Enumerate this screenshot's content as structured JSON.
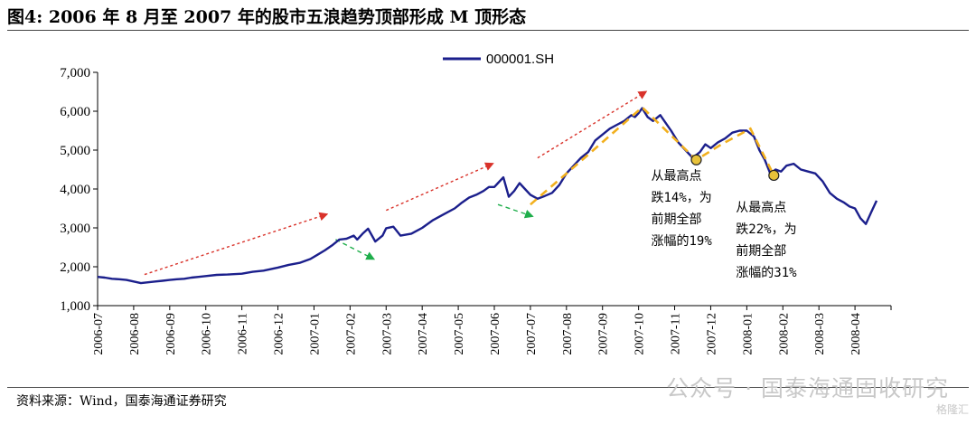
{
  "figure": {
    "title": "图4:  2006 年 8 月至 2007 年的股市五浪趋势顶部形成 M 顶形态",
    "source": "资料来源：Wind，国泰海通证券研究",
    "watermark": "公众号 · 国泰海通固收研究",
    "watermark_logo": "格隆汇"
  },
  "colors": {
    "series": "#1b1f8c",
    "red_arrow": "#d9322a",
    "green_arrow": "#1fae4b",
    "trend_dash": "#f2b01e",
    "marker": "#e8c23a"
  },
  "chart_data": {
    "type": "line",
    "title": "",
    "xlabel": "",
    "ylabel": "",
    "ylim": [
      1000,
      7000
    ],
    "yticks": [
      1000,
      2000,
      3000,
      4000,
      5000,
      6000,
      7000
    ],
    "ytick_labels": [
      "1,000",
      "2,000",
      "3,000",
      "4,000",
      "5,000",
      "6,000",
      "7,000"
    ],
    "xtick_labels": [
      "2006-07",
      "2006-08",
      "2006-09",
      "2006-10",
      "2006-11",
      "2006-12",
      "2007-01",
      "2007-02",
      "2007-03",
      "2007-04",
      "2007-05",
      "2007-06",
      "2007-07",
      "2007-08",
      "2007-09",
      "2007-10",
      "2007-11",
      "2007-12",
      "2008-01",
      "2008-02",
      "2008-03",
      "2008-04"
    ],
    "grid": false,
    "legend_position": "top-center",
    "series": [
      {
        "name": "000001.SH",
        "x": [
          0.0,
          0.2,
          0.4,
          0.6,
          0.8,
          1.0,
          1.2,
          1.4,
          1.6,
          1.8,
          2.0,
          2.2,
          2.4,
          2.6,
          2.8,
          3.0,
          3.3,
          3.6,
          4.0,
          4.3,
          4.6,
          5.0,
          5.3,
          5.6,
          5.9,
          6.1,
          6.3,
          6.5,
          6.7,
          6.9,
          7.1,
          7.2,
          7.35,
          7.5,
          7.7,
          7.9,
          8.0,
          8.2,
          8.4,
          8.7,
          9.0,
          9.3,
          9.6,
          9.9,
          10.1,
          10.3,
          10.5,
          10.7,
          10.85,
          11.0,
          11.1,
          11.25,
          11.4,
          11.55,
          11.7,
          11.85,
          12.0,
          12.2,
          12.4,
          12.6,
          12.8,
          13.0,
          13.2,
          13.4,
          13.6,
          13.8,
          14.0,
          14.2,
          14.4,
          14.6,
          14.8,
          14.9,
          15.0,
          15.1,
          15.25,
          15.4,
          15.6,
          15.75,
          15.9,
          16.1,
          16.3,
          16.5,
          16.7,
          16.85,
          17.0,
          17.2,
          17.4,
          17.6,
          17.8,
          18.0,
          18.2,
          18.35,
          18.5,
          18.65,
          18.8,
          18.95,
          19.1,
          19.3,
          19.5,
          19.7,
          19.9,
          20.1,
          20.3,
          20.5,
          20.7,
          20.85,
          21.0,
          21.15,
          21.3,
          21.45,
          21.6
        ],
        "values": [
          1740,
          1720,
          1690,
          1680,
          1660,
          1620,
          1580,
          1600,
          1620,
          1640,
          1660,
          1680,
          1690,
          1720,
          1740,
          1760,
          1790,
          1800,
          1820,
          1870,
          1900,
          1980,
          2050,
          2100,
          2200,
          2310,
          2420,
          2550,
          2700,
          2720,
          2800,
          2700,
          2850,
          2980,
          2650,
          2800,
          2990,
          3030,
          2800,
          2850,
          3000,
          3200,
          3350,
          3500,
          3650,
          3780,
          3850,
          3950,
          4050,
          4050,
          4150,
          4300,
          3800,
          3950,
          4150,
          4000,
          3850,
          3750,
          3820,
          3900,
          4100,
          4400,
          4600,
          4800,
          4950,
          5250,
          5400,
          5550,
          5650,
          5750,
          5900,
          5850,
          5950,
          6080,
          5850,
          5750,
          5900,
          5700,
          5500,
          5200,
          5000,
          4800,
          4950,
          5150,
          5050,
          5200,
          5300,
          5450,
          5500,
          5500,
          5350,
          5000,
          4750,
          4400,
          4500,
          4450,
          4600,
          4650,
          4500,
          4450,
          4400,
          4200,
          3900,
          3750,
          3650,
          3550,
          3500,
          3250,
          3100,
          3400,
          3700
        ]
      }
    ],
    "annotations": [
      {
        "lines": [
          "从最高点",
          "跌14%，为",
          "前期全部",
          "涨幅的19%"
        ],
        "at_x": 16.6,
        "at_y": 4750
      },
      {
        "lines": [
          "从最高点",
          "跌22%，为",
          "前期全部",
          "涨幅的31%"
        ],
        "at_x": 18.75,
        "at_y": 4350
      }
    ],
    "trend_arrows": [
      {
        "kind": "red",
        "from": [
          1.3,
          1800
        ],
        "to": [
          6.35,
          3350
        ]
      },
      {
        "kind": "green",
        "from": [
          6.6,
          2700
        ],
        "to": [
          7.65,
          2200
        ]
      },
      {
        "kind": "red",
        "from": [
          8.0,
          3450
        ],
        "to": [
          10.95,
          4650
        ]
      },
      {
        "kind": "green",
        "from": [
          11.1,
          3600
        ],
        "to": [
          12.05,
          3300
        ]
      },
      {
        "kind": "red",
        "from": [
          12.2,
          4800
        ],
        "to": [
          15.2,
          6500
        ]
      }
    ],
    "dashed_trend": {
      "x": [
        12.0,
        13.5,
        15.1,
        16.6,
        17.3,
        18.1,
        18.75
      ],
      "values": [
        3600,
        4800,
        6100,
        4750,
        5150,
        5550,
        4350
      ]
    }
  }
}
